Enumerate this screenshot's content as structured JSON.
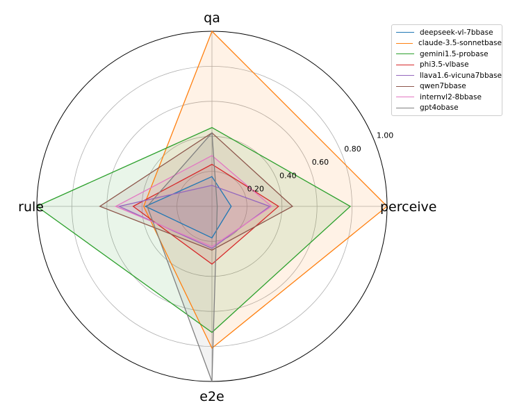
{
  "chart_data": {
    "type": "radar",
    "axes": [
      "qa",
      "perceive",
      "e2e",
      "rule"
    ],
    "rticks": [
      "0.20",
      "0.40",
      "0.60",
      "0.80",
      "1.00"
    ],
    "rtick_values": [
      0.2,
      0.4,
      0.6,
      0.8,
      1.0
    ],
    "rlim": [
      0,
      1.0
    ],
    "series": [
      {
        "name": "deepseek-vl-7bbase",
        "color": "#1f77b4",
        "values": [
          0.17,
          0.11,
          0.18,
          0.38
        ]
      },
      {
        "name": "claude-3.5-sonnetbase",
        "color": "#ff7f0e",
        "values": [
          1.0,
          1.0,
          0.81,
          0.39
        ]
      },
      {
        "name": "gemini1.5-probase",
        "color": "#2ca02c",
        "values": [
          0.45,
          0.79,
          0.72,
          1.0
        ]
      },
      {
        "name": "phi3.5-vlbase",
        "color": "#d62728",
        "values": [
          0.24,
          0.38,
          0.33,
          0.45
        ]
      },
      {
        "name": "llava1.6-vicuna7bbase",
        "color": "#9467bd",
        "values": [
          0.12,
          0.33,
          0.24,
          0.53
        ]
      },
      {
        "name": "qwen7bbase",
        "color": "#8c564b",
        "values": [
          0.42,
          0.46,
          0.25,
          0.64
        ]
      },
      {
        "name": "internvl2-8bbase",
        "color": "#e377c2",
        "values": [
          0.29,
          0.34,
          0.23,
          0.55
        ]
      },
      {
        "name": "gpt4obase",
        "color": "#7f7f7f",
        "values": [
          0.42,
          0.03,
          1.0,
          0.37
        ]
      }
    ]
  }
}
